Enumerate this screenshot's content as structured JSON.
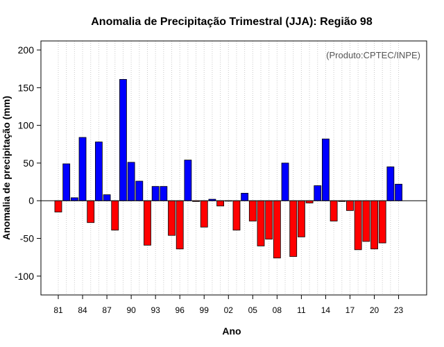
{
  "chart_data": {
    "type": "bar",
    "title": "Anomalia de Precipitação Trimestral (JJA): Região 98",
    "xlabel": "Ano",
    "ylabel": "Anomalia de precipitação (mm)",
    "annotation": "(Produto:CPTEC/INPE)",
    "ylim": [
      -125,
      212
    ],
    "yticks": [
      -100,
      -50,
      0,
      50,
      100,
      150,
      200
    ],
    "grid": "vertical dotted",
    "colors": {
      "positive": "#0000ff",
      "negative": "#ff0000",
      "axis": "#000000",
      "grid": "#c8c8c8"
    },
    "categories": [
      "1981",
      "1982",
      "1983",
      "1984",
      "1985",
      "1986",
      "1987",
      "1988",
      "1989",
      "1990",
      "1991",
      "1992",
      "1993",
      "1994",
      "1995",
      "1996",
      "1997",
      "1998",
      "1999",
      "2000",
      "2001",
      "2002",
      "2003",
      "2004",
      "2005",
      "2006",
      "2007",
      "2008",
      "2009",
      "2010",
      "2011",
      "2012",
      "2013",
      "2014",
      "2015",
      "2016",
      "2017",
      "2018",
      "2019",
      "2020",
      "2021",
      "2022",
      "2023"
    ],
    "xtick_labels": [
      "81",
      "84",
      "87",
      "90",
      "93",
      "96",
      "99",
      "02",
      "05",
      "08",
      "11",
      "14",
      "17",
      "20",
      "23"
    ],
    "values": [
      -15,
      49,
      4,
      84,
      -29,
      78,
      8,
      -39,
      161,
      51,
      26,
      -59,
      19,
      19,
      -46,
      -64,
      54,
      -1,
      -35,
      2,
      -7,
      0,
      -39,
      10,
      -27,
      -60,
      -51,
      -76,
      50,
      -74,
      -48,
      -3,
      20,
      82,
      -27,
      -1,
      -13,
      -65,
      -54,
      -64,
      -56,
      45,
      22
    ]
  }
}
